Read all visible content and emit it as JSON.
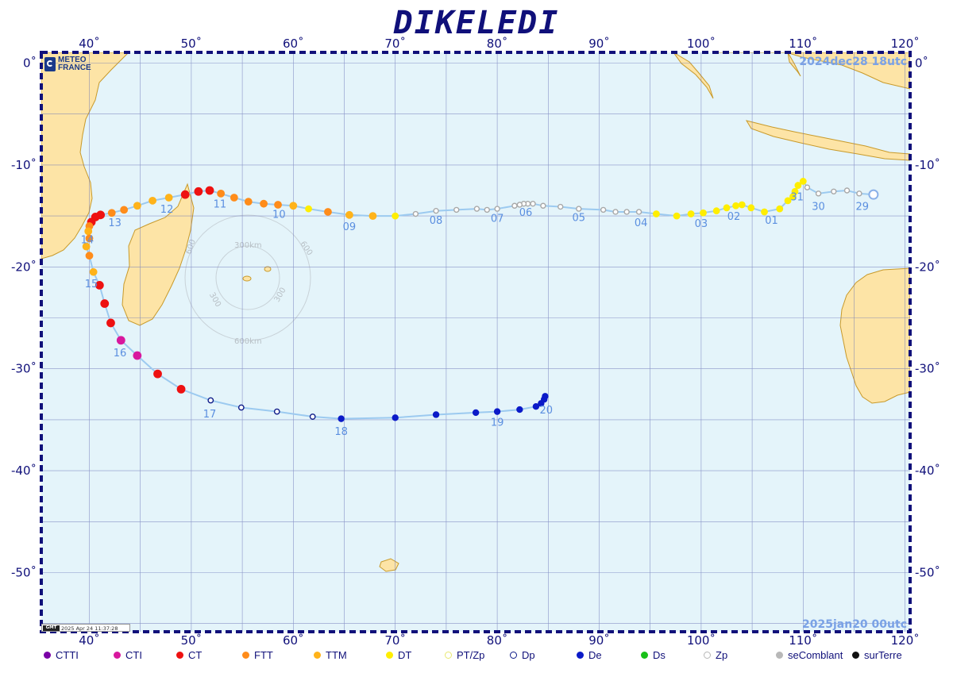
{
  "title": "DIKELEDI",
  "start_label": "2024dec28  18utc",
  "end_label": "2025jan20  00utc",
  "stamp": "2025 Apr 24 11:37:28",
  "stamp_tag": "GMT",
  "logo": {
    "line1": "METEO",
    "line2": "FRANCE"
  },
  "lon_ticks": [
    40,
    50,
    60,
    70,
    80,
    90,
    100,
    110,
    120
  ],
  "lat_ticks": [
    0,
    -10,
    -20,
    -30,
    -40,
    -50
  ],
  "lon_labels": [
    "40˚",
    "50˚",
    "60˚",
    "70˚",
    "80˚",
    "90˚",
    "100˚",
    "110˚",
    "120˚"
  ],
  "lat_labels": [
    "0˚",
    "-10˚",
    "-20˚",
    "-30˚",
    "-40˚",
    "-50˚"
  ],
  "range_rings": {
    "center": [
      57.5,
      -20.5
    ],
    "labels": [
      "300km",
      "600km",
      "300",
      "300",
      "600",
      "600"
    ]
  },
  "colors": {
    "CTTI": "#7a00a6",
    "CTI": "#d8189e",
    "CT": "#ee1111",
    "FTT": "#ff8c1a",
    "TTM": "#ffb31a",
    "DT": "#ffee00",
    "PTZp": "#e8e870",
    "Dp": "#0d1a88",
    "De": "#0b1ac8",
    "Ds": "#18c018",
    "Zp": "#b8b8b8",
    "seComblant": "#b8b8b8",
    "surTerre": "#111111",
    "ocean": "#e4f4fa",
    "land": "#fde4a6",
    "coast": "#c89a2a",
    "grid": "#6b74b8",
    "track": "#9ccaf0"
  },
  "legend": [
    {
      "key": "CTTI",
      "label": "CTTI",
      "style": "filled"
    },
    {
      "key": "CTI",
      "label": "CTI",
      "style": "filled"
    },
    {
      "key": "CT",
      "label": "CT",
      "style": "filled"
    },
    {
      "key": "FTT",
      "label": "FTT",
      "style": "filled"
    },
    {
      "key": "TTM",
      "label": "TTM",
      "style": "filled"
    },
    {
      "key": "DT",
      "label": "DT",
      "style": "filled"
    },
    {
      "key": "PTZp",
      "label": "PT/Zp",
      "style": "open"
    },
    {
      "key": "Dp",
      "label": "Dp",
      "style": "open"
    },
    {
      "key": "De",
      "label": "De",
      "style": "filled"
    },
    {
      "key": "Ds",
      "label": "Ds",
      "style": "filled"
    },
    {
      "key": "Zp",
      "label": "Zp",
      "style": "open"
    },
    {
      "key": "seComblant",
      "label": "seComblant",
      "style": "filled"
    },
    {
      "key": "surTerre",
      "label": "surTerre",
      "style": "filled"
    }
  ],
  "track": [
    {
      "lon": 116.9,
      "lat": -12.9,
      "cat": "Zp"
    },
    {
      "lon": 115.5,
      "lat": -12.8,
      "cat": "Zp"
    },
    {
      "lon": 114.3,
      "lat": -12.5,
      "cat": "Zp"
    },
    {
      "lon": 113.0,
      "lat": -12.6,
      "cat": "Zp"
    },
    {
      "lon": 111.5,
      "lat": -12.8,
      "cat": "Zp"
    },
    {
      "lon": 110.4,
      "lat": -12.2,
      "cat": "Zp"
    },
    {
      "lon": 110.0,
      "lat": -11.6,
      "cat": "DT"
    },
    {
      "lon": 109.5,
      "lat": -12.0,
      "cat": "DT"
    },
    {
      "lon": 109.2,
      "lat": -12.6,
      "cat": "DT"
    },
    {
      "lon": 109.0,
      "lat": -13.1,
      "cat": "DT"
    },
    {
      "lon": 108.5,
      "lat": -13.5,
      "cat": "DT"
    },
    {
      "lon": 107.7,
      "lat": -14.3,
      "cat": "DT"
    },
    {
      "lon": 106.2,
      "lat": -14.6,
      "cat": "DT"
    },
    {
      "lon": 104.9,
      "lat": -14.2,
      "cat": "DT"
    },
    {
      "lon": 104.0,
      "lat": -13.9,
      "cat": "DT"
    },
    {
      "lon": 103.4,
      "lat": -14.0,
      "cat": "DT"
    },
    {
      "lon": 102.5,
      "lat": -14.2,
      "cat": "DT"
    },
    {
      "lon": 101.5,
      "lat": -14.5,
      "cat": "DT"
    },
    {
      "lon": 100.2,
      "lat": -14.7,
      "cat": "DT"
    },
    {
      "lon": 99.0,
      "lat": -14.8,
      "cat": "DT"
    },
    {
      "lon": 97.6,
      "lat": -15.0,
      "cat": "DT"
    },
    {
      "lon": 95.6,
      "lat": -14.8,
      "cat": "DT"
    },
    {
      "lon": 93.9,
      "lat": -14.6,
      "cat": "Zp"
    },
    {
      "lon": 92.7,
      "lat": -14.6,
      "cat": "Zp"
    },
    {
      "lon": 91.6,
      "lat": -14.6,
      "cat": "Zp"
    },
    {
      "lon": 90.4,
      "lat": -14.4,
      "cat": "Zp"
    },
    {
      "lon": 88.0,
      "lat": -14.3,
      "cat": "Zp"
    },
    {
      "lon": 86.2,
      "lat": -14.1,
      "cat": "Zp"
    },
    {
      "lon": 84.5,
      "lat": -14.0,
      "cat": "Zp"
    },
    {
      "lon": 83.5,
      "lat": -13.8,
      "cat": "Zp"
    },
    {
      "lon": 83.0,
      "lat": -13.8,
      "cat": "Zp"
    },
    {
      "lon": 82.6,
      "lat": -13.8,
      "cat": "Zp"
    },
    {
      "lon": 82.2,
      "lat": -13.9,
      "cat": "Zp"
    },
    {
      "lon": 81.7,
      "lat": -14.0,
      "cat": "PTZp"
    },
    {
      "lon": 80.0,
      "lat": -14.3,
      "cat": "PTZp"
    },
    {
      "lon": 79.0,
      "lat": -14.4,
      "cat": "PTZp"
    },
    {
      "lon": 78.0,
      "lat": -14.3,
      "cat": "PTZp"
    },
    {
      "lon": 76.0,
      "lat": -14.4,
      "cat": "PTZp"
    },
    {
      "lon": 74.0,
      "lat": -14.5,
      "cat": "PTZp"
    },
    {
      "lon": 72.0,
      "lat": -14.8,
      "cat": "PTZp"
    },
    {
      "lon": 70.0,
      "lat": -15.0,
      "cat": "DT"
    },
    {
      "lon": 67.8,
      "lat": -15.0,
      "cat": "TTM"
    },
    {
      "lon": 65.5,
      "lat": -14.9,
      "cat": "TTM"
    },
    {
      "lon": 63.4,
      "lat": -14.6,
      "cat": "FTT"
    },
    {
      "lon": 61.5,
      "lat": -14.3,
      "cat": "DT"
    },
    {
      "lon": 60.0,
      "lat": -14.0,
      "cat": "TTM"
    },
    {
      "lon": 58.5,
      "lat": -13.9,
      "cat": "FTT"
    },
    {
      "lon": 57.1,
      "lat": -13.8,
      "cat": "FTT"
    },
    {
      "lon": 55.6,
      "lat": -13.6,
      "cat": "FTT"
    },
    {
      "lon": 54.2,
      "lat": -13.2,
      "cat": "FTT"
    },
    {
      "lon": 52.9,
      "lat": -12.8,
      "cat": "FTT"
    },
    {
      "lon": 51.8,
      "lat": -12.5,
      "cat": "CT"
    },
    {
      "lon": 50.7,
      "lat": -12.6,
      "cat": "CT"
    },
    {
      "lon": 49.4,
      "lat": -12.9,
      "cat": "CT"
    },
    {
      "lon": 47.8,
      "lat": -13.2,
      "cat": "TTM"
    },
    {
      "lon": 46.2,
      "lat": -13.5,
      "cat": "TTM"
    },
    {
      "lon": 44.7,
      "lat": -14.0,
      "cat": "TTM"
    },
    {
      "lon": 43.4,
      "lat": -14.4,
      "cat": "FTT"
    },
    {
      "lon": 42.2,
      "lat": -14.7,
      "cat": "FTT"
    },
    {
      "lon": 41.1,
      "lat": -14.9,
      "cat": "CT"
    },
    {
      "lon": 40.6,
      "lat": -15.1,
      "cat": "CT"
    },
    {
      "lon": 40.2,
      "lat": -15.6,
      "cat": "CT"
    },
    {
      "lon": 40.0,
      "lat": -16.0,
      "cat": "FTT"
    },
    {
      "lon": 39.9,
      "lat": -16.5,
      "cat": "TTM"
    },
    {
      "lon": 40.0,
      "lat": -17.2,
      "cat": "FTT"
    },
    {
      "lon": 39.7,
      "lat": -18.0,
      "cat": "TTM"
    },
    {
      "lon": 40.0,
      "lat": -18.9,
      "cat": "FTT"
    },
    {
      "lon": 40.4,
      "lat": -20.5,
      "cat": "TTM"
    },
    {
      "lon": 41.0,
      "lat": -21.8,
      "cat": "CT"
    },
    {
      "lon": 41.5,
      "lat": -23.6,
      "cat": "CT"
    },
    {
      "lon": 42.1,
      "lat": -25.5,
      "cat": "CT"
    },
    {
      "lon": 43.1,
      "lat": -27.2,
      "cat": "CTI"
    },
    {
      "lon": 44.7,
      "lat": -28.7,
      "cat": "CTI"
    },
    {
      "lon": 46.7,
      "lat": -30.5,
      "cat": "CT"
    },
    {
      "lon": 49.0,
      "lat": -32.0,
      "cat": "CT"
    },
    {
      "lon": 51.9,
      "lat": -33.1,
      "cat": "Dp"
    },
    {
      "lon": 54.9,
      "lat": -33.8,
      "cat": "Dp"
    },
    {
      "lon": 58.4,
      "lat": -34.2,
      "cat": "Dp"
    },
    {
      "lon": 61.9,
      "lat": -34.7,
      "cat": "Dp"
    },
    {
      "lon": 64.7,
      "lat": -34.9,
      "cat": "De"
    },
    {
      "lon": 70.0,
      "lat": -34.8,
      "cat": "De"
    },
    {
      "lon": 74.0,
      "lat": -34.5,
      "cat": "De"
    },
    {
      "lon": 77.9,
      "lat": -34.3,
      "cat": "De"
    },
    {
      "lon": 80.0,
      "lat": -34.2,
      "cat": "De"
    },
    {
      "lon": 82.2,
      "lat": -34.0,
      "cat": "De"
    },
    {
      "lon": 83.8,
      "lat": -33.7,
      "cat": "De"
    },
    {
      "lon": 84.3,
      "lat": -33.4,
      "cat": "De"
    },
    {
      "lon": 84.6,
      "lat": -33.0,
      "cat": "De"
    },
    {
      "lon": 84.7,
      "lat": -32.7,
      "cat": "De"
    }
  ],
  "day_labels": [
    {
      "text": "29",
      "lon": 115.8,
      "lat": -14.0
    },
    {
      "text": "30",
      "lon": 111.5,
      "lat": -14.0
    },
    {
      "text": "31",
      "lon": 109.4,
      "lat": -13.1
    },
    {
      "text": "01",
      "lon": 106.9,
      "lat": -15.4
    },
    {
      "text": "02",
      "lon": 103.2,
      "lat": -15.0
    },
    {
      "text": "03",
      "lon": 100.0,
      "lat": -15.7
    },
    {
      "text": "04",
      "lon": 94.1,
      "lat": -15.6
    },
    {
      "text": "05",
      "lon": 88.0,
      "lat": -15.1
    },
    {
      "text": "06",
      "lon": 82.8,
      "lat": -14.6
    },
    {
      "text": "07",
      "lon": 80.0,
      "lat": -15.2
    },
    {
      "text": "08",
      "lon": 74.0,
      "lat": -15.4
    },
    {
      "text": "09",
      "lon": 65.5,
      "lat": -16.0
    },
    {
      "text": "10",
      "lon": 58.6,
      "lat": -14.8
    },
    {
      "text": "11",
      "lon": 52.8,
      "lat": -13.8
    },
    {
      "text": "12",
      "lon": 47.6,
      "lat": -14.3
    },
    {
      "text": "13",
      "lon": 42.5,
      "lat": -15.6
    },
    {
      "text": "14",
      "lon": 39.8,
      "lat": -17.3
    },
    {
      "text": "15",
      "lon": 40.2,
      "lat": -21.6
    },
    {
      "text": "16",
      "lon": 43.0,
      "lat": -28.4
    },
    {
      "text": "17",
      "lon": 51.8,
      "lat": -34.4
    },
    {
      "text": "18",
      "lon": 64.7,
      "lat": -36.1
    },
    {
      "text": "19",
      "lon": 80.0,
      "lat": -35.2
    },
    {
      "text": "20",
      "lon": 84.8,
      "lat": -34.0
    }
  ]
}
